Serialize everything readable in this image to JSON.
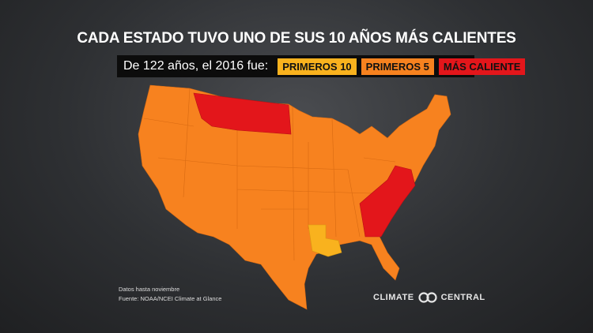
{
  "title": "CADA ESTADO TUVO UNO DE SUS 10 AÑOS MÁS CALIENTES",
  "legend": {
    "label": "De 122 años, el 2016 fue:",
    "items": [
      {
        "text": "PRIMEROS 10",
        "color": "#f9b21e"
      },
      {
        "text": "PRIMEROS 5",
        "color": "#f7821f"
      },
      {
        "text": "MÁS CALIENTE",
        "color": "#e3161b"
      }
    ]
  },
  "notes": [
    "Datos hasta noviembre",
    "Fuente: NOAA/NCEI Climate at Glance"
  ],
  "logo": [
    "CLIMATE",
    "CENTRAL"
  ]
}
